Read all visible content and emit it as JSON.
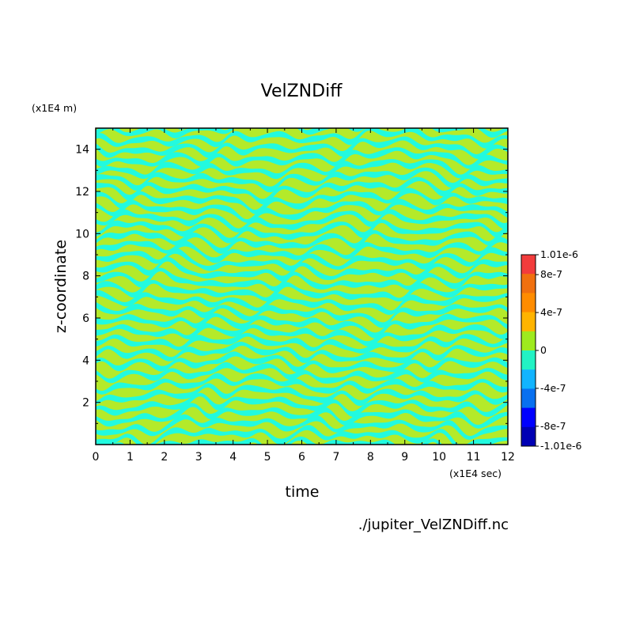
{
  "chart_data": {
    "type": "heatmap",
    "title": "VelZNDiff",
    "xlabel": "time",
    "ylabel": "z-coordinate",
    "x_unit": "(x1E4 sec)",
    "y_unit": "(x1E4 m)",
    "xlim": [
      0,
      12
    ],
    "ylim": [
      0,
      15
    ],
    "x_ticks": [
      "0",
      "1",
      "2",
      "3",
      "4",
      "5",
      "6",
      "7",
      "8",
      "9",
      "10",
      "11",
      "12"
    ],
    "y_ticks": [
      "2",
      "4",
      "6",
      "8",
      "10",
      "12",
      "14"
    ],
    "colorbar": {
      "range": [
        -1.01e-06,
        1.01e-06
      ],
      "labels": [
        "1.01e-6",
        "8e-7",
        "4e-7",
        "0",
        "-4e-7",
        "-8e-7",
        "-1.01e-6"
      ],
      "colors": [
        "#f23c3c",
        "#f0700f",
        "#ff8c00",
        "#ffb400",
        "#9eea1e",
        "#22f2c4",
        "#12b4ff",
        "#0870f0",
        "#0000ff",
        "#0000b4"
      ]
    },
    "field_colors": {
      "positive": "#b4ea2a",
      "negative": "#22fadf"
    },
    "source_file": "./jupiter_VelZNDiff.nc",
    "pattern": "alternating bands of small positive and negative values across the whole domain"
  }
}
